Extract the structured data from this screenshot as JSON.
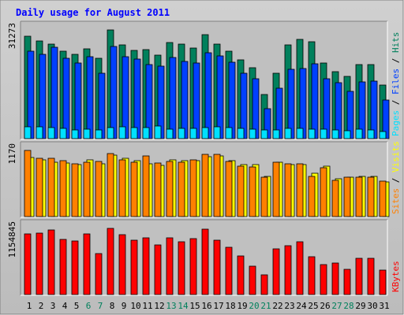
{
  "chart_data": {
    "type": "bar",
    "title": "Daily usage for August 2011",
    "categories": [
      "1",
      "2",
      "3",
      "4",
      "5",
      "6",
      "7",
      "8",
      "9",
      "10",
      "11",
      "12",
      "13",
      "14",
      "15",
      "16",
      "17",
      "18",
      "19",
      "20",
      "21",
      "22",
      "23",
      "24",
      "25",
      "26",
      "27",
      "28",
      "29",
      "30",
      "31"
    ],
    "weekend_days": [
      "6",
      "7",
      "13",
      "14",
      "20",
      "21",
      "27",
      "28"
    ],
    "panels": [
      {
        "id": "top",
        "ymax_label": "31273",
        "ymax": 31273,
        "series": [
          {
            "name": "Hits",
            "color": "#00805c",
            "values": [
              29400,
              28100,
              27100,
              25100,
              24300,
              25800,
              23200,
              31273,
              27000,
              25400,
              25700,
              24000,
              27700,
              27100,
              26000,
              29800,
              27200,
              25200,
              22600,
              20500,
              12600,
              18700,
              27000,
              28600,
              27900,
              21800,
              19300,
              18000,
              21300,
              21300,
              15400
            ]
          },
          {
            "name": "Files",
            "color": "#0040ff",
            "values": [
              25100,
              24300,
              26300,
              23200,
              21700,
              23500,
              18800,
              26600,
              23600,
              22900,
              21200,
              20800,
              23400,
              22100,
              21800,
              24700,
              23800,
              21900,
              18900,
              17300,
              8500,
              14400,
              19900,
              20100,
              21600,
              17200,
              16000,
              13700,
              16400,
              16600,
              11000
            ]
          },
          {
            "name": "Pages",
            "color": "#00e0ff",
            "values": [
              3300,
              3500,
              3200,
              3000,
              2600,
              2700,
              2500,
              3200,
              3300,
              3100,
              3200,
              3600,
              2700,
              3000,
              3000,
              3200,
              3300,
              3100,
              3000,
              2800,
              2500,
              2500,
              3000,
              3000,
              2800,
              2800,
              2500,
              2300,
              2700,
              2600,
              2100
            ]
          }
        ]
      },
      {
        "id": "middle",
        "ymax_label": "1170",
        "ymax": 1170,
        "series": [
          {
            "name": "Visits",
            "color": "#ffff00",
            "values": [
              1040,
              1000,
              965,
              945,
              920,
              1000,
              930,
              1080,
              1035,
              985,
              940,
              910,
              1000,
              990,
              985,
              1065,
              1070,
              985,
              915,
              915,
              710,
              955,
              925,
              915,
              765,
              890,
              675,
              690,
              705,
              705,
              615
            ]
          },
          {
            "name": "Sites",
            "color": "#ff8000",
            "values": [
              1170,
              1035,
              1025,
              985,
              935,
              960,
              975,
              1120,
              1000,
              960,
              1070,
              950,
              975,
              965,
              1005,
              1100,
              1105,
              970,
              890,
              875,
              695,
              960,
              930,
              935,
              715,
              860,
              640,
              690,
              695,
              695,
              625
            ]
          }
        ]
      },
      {
        "id": "bottom",
        "ymax_label": "1154845",
        "ymax": 1154845,
        "series": [
          {
            "name": "KBytes",
            "color": "#ff0000",
            "values": [
              1065000,
              1071000,
              1130000,
              958000,
              937000,
              1061000,
              721000,
              1154845,
              1048000,
              948000,
              996000,
              863000,
              988000,
              928000,
              977000,
              1140000,
              954000,
              829000,
              669000,
              493000,
              338000,
              792000,
              858000,
              926000,
              663000,
              519000,
              547000,
              442000,
              629000,
              634000,
              428000
            ]
          }
        ]
      }
    ]
  }
}
